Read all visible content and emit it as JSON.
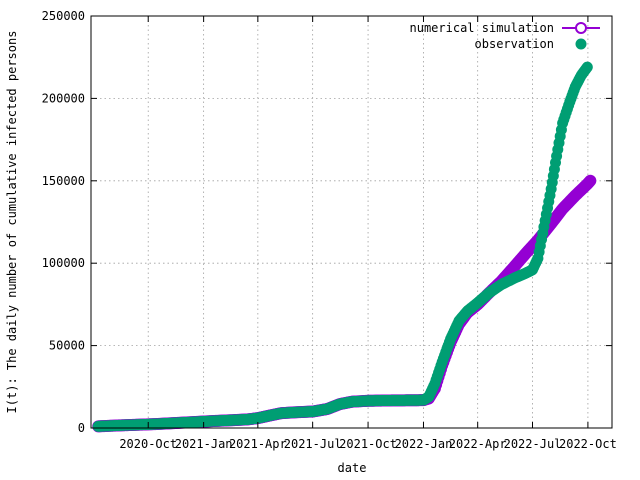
{
  "chart_data": {
    "type": "scatter",
    "xlabel": "date",
    "ylabel": "I(t): The daily number of cumulative infected persons",
    "ylim": [
      0,
      250000
    ],
    "xlim": [
      "2020-06-28",
      "2022-11-10"
    ],
    "y_ticks": [
      0,
      50000,
      100000,
      150000,
      200000,
      250000
    ],
    "x_ticks": [
      {
        "label": "2020-Oct",
        "date": "2020-10-01"
      },
      {
        "label": "2021-Jan",
        "date": "2021-01-01"
      },
      {
        "label": "2021-Apr",
        "date": "2021-04-01"
      },
      {
        "label": "2021-Jul",
        "date": "2021-07-01"
      },
      {
        "label": "2021-Oct",
        "date": "2021-10-01"
      },
      {
        "label": "2022-Jan",
        "date": "2022-01-01"
      },
      {
        "label": "2022-Apr",
        "date": "2022-04-01"
      },
      {
        "label": "2022-Jul",
        "date": "2022-07-01"
      },
      {
        "label": "2022-Oct",
        "date": "2022-10-01"
      }
    ],
    "grid": true,
    "legend_position": "top-right",
    "series": [
      {
        "name": "numerical simulation",
        "color": "#9400d3",
        "marker": "open-circle",
        "points": [
          [
            "2020-07-10",
            1000
          ],
          [
            "2020-08-15",
            1600
          ],
          [
            "2020-09-15",
            2000
          ],
          [
            "2020-10-15",
            2400
          ],
          [
            "2020-11-15",
            3000
          ],
          [
            "2020-12-15",
            3600
          ],
          [
            "2021-01-15",
            4200
          ],
          [
            "2021-02-15",
            4700
          ],
          [
            "2021-03-15",
            5200
          ],
          [
            "2021-04-01",
            6000
          ],
          [
            "2021-04-20",
            7500
          ],
          [
            "2021-05-10",
            9000
          ],
          [
            "2021-06-01",
            9500
          ],
          [
            "2021-07-01",
            10000
          ],
          [
            "2021-07-25",
            11500
          ],
          [
            "2021-08-15",
            14500
          ],
          [
            "2021-09-05",
            16000
          ],
          [
            "2021-10-01",
            16500
          ],
          [
            "2021-11-01",
            16700
          ],
          [
            "2021-12-01",
            16800
          ],
          [
            "2022-01-01",
            16900
          ],
          [
            "2022-01-10",
            18000
          ],
          [
            "2022-01-20",
            24000
          ],
          [
            "2022-02-01",
            38000
          ],
          [
            "2022-02-15",
            52000
          ],
          [
            "2022-03-01",
            63000
          ],
          [
            "2022-03-15",
            70000
          ],
          [
            "2022-04-01",
            75000
          ],
          [
            "2022-04-20",
            82000
          ],
          [
            "2022-05-10",
            89000
          ],
          [
            "2022-06-01",
            98000
          ],
          [
            "2022-06-20",
            106000
          ],
          [
            "2022-07-10",
            114000
          ],
          [
            "2022-08-01",
            124000
          ],
          [
            "2022-08-20",
            133000
          ],
          [
            "2022-09-10",
            141000
          ],
          [
            "2022-09-30",
            148000
          ],
          [
            "2022-10-05",
            150000
          ]
        ]
      },
      {
        "name": "observation",
        "color": "#009e73",
        "marker": "filled-circle",
        "points": [
          [
            "2020-07-10",
            1000
          ],
          [
            "2020-08-15",
            1600
          ],
          [
            "2020-09-15",
            2000
          ],
          [
            "2020-10-15",
            2400
          ],
          [
            "2020-11-15",
            3000
          ],
          [
            "2020-12-15",
            3600
          ],
          [
            "2021-01-15",
            4200
          ],
          [
            "2021-02-15",
            4700
          ],
          [
            "2021-03-15",
            5200
          ],
          [
            "2021-04-01",
            6000
          ],
          [
            "2021-04-20",
            7500
          ],
          [
            "2021-05-10",
            9000
          ],
          [
            "2021-06-01",
            9500
          ],
          [
            "2021-07-01",
            10000
          ],
          [
            "2021-07-25",
            11500
          ],
          [
            "2021-08-15",
            14500
          ],
          [
            "2021-09-05",
            16000
          ],
          [
            "2021-10-01",
            16500
          ],
          [
            "2021-11-01",
            16700
          ],
          [
            "2021-12-01",
            16800
          ],
          [
            "2022-01-01",
            16900
          ],
          [
            "2022-01-10",
            19000
          ],
          [
            "2022-01-20",
            27000
          ],
          [
            "2022-02-01",
            40000
          ],
          [
            "2022-02-15",
            54000
          ],
          [
            "2022-03-01",
            65000
          ],
          [
            "2022-03-15",
            71000
          ],
          [
            "2022-04-01",
            76000
          ],
          [
            "2022-04-20",
            82000
          ],
          [
            "2022-05-10",
            87000
          ],
          [
            "2022-06-01",
            91000
          ],
          [
            "2022-06-20",
            94000
          ],
          [
            "2022-07-01",
            96000
          ],
          [
            "2022-07-10",
            103000
          ],
          [
            "2022-07-20",
            122000
          ],
          [
            "2022-08-01",
            145000
          ],
          [
            "2022-08-10",
            165000
          ],
          [
            "2022-08-20",
            185000
          ],
          [
            "2022-09-01",
            198000
          ],
          [
            "2022-09-10",
            207000
          ],
          [
            "2022-09-20",
            214000
          ],
          [
            "2022-09-30",
            219000
          ]
        ]
      }
    ]
  }
}
